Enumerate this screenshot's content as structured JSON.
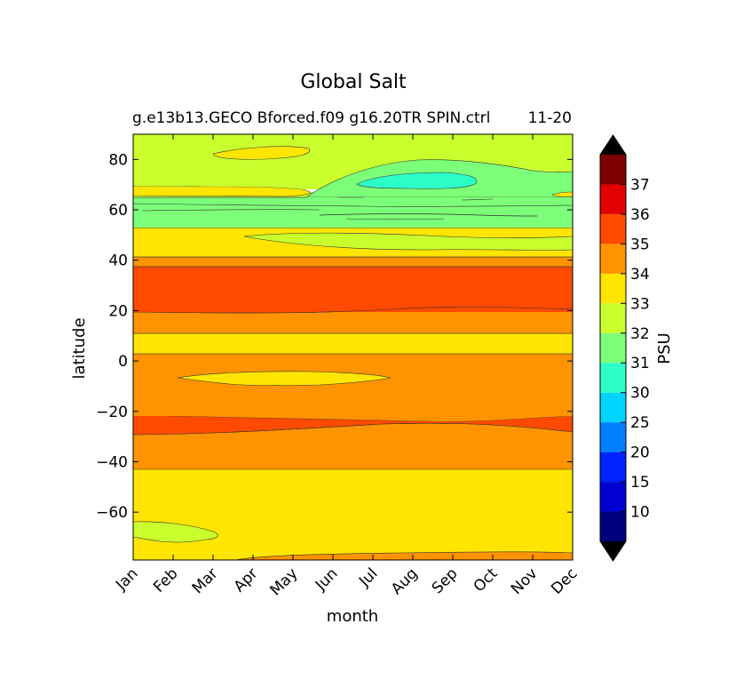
{
  "figure": {
    "title": "Global Salt",
    "subtitle": "g.e13b13.GECO Bforced.f09 g16.20TR SPIN.ctrl",
    "subtitle_extra": "11-20"
  },
  "chart_data": {
    "type": "heatmap",
    "title": "Global Salt",
    "subtitle": "g.e13b13.GECO Bforced.f09 g16.20TR SPIN.ctrl 11-20",
    "xlabel": "month",
    "ylabel": "latitude",
    "x_categories": [
      "Jan",
      "Feb",
      "Mar",
      "Apr",
      "May",
      "Jun",
      "Jul",
      "Aug",
      "Sep",
      "Oct",
      "Nov",
      "Dec"
    ],
    "ylim": [
      -79,
      90
    ],
    "y_ticks": [
      -60,
      -40,
      -20,
      0,
      20,
      40,
      60,
      80
    ],
    "y_tick_labels": [
      "−60",
      "−40",
      "−20",
      "0",
      "20",
      "40",
      "60",
      "80"
    ],
    "colorbar": {
      "label": "PSU",
      "extend": "both",
      "levels": [
        5,
        10,
        15,
        20,
        25,
        30,
        31,
        32,
        33,
        34,
        35,
        36,
        37,
        38
      ],
      "tick_labels": [
        "10",
        "15",
        "20",
        "25",
        "30",
        "31",
        "32",
        "33",
        "34",
        "35",
        "36",
        "37"
      ],
      "colors": [
        "#00007f",
        "#0000d0",
        "#0022ff",
        "#0080ff",
        "#00d4ff",
        "#2dffc9",
        "#7cff79",
        "#c9ff2d",
        "#ffe500",
        "#ff9400",
        "#ff4a00",
        "#e30000",
        "#7f0000"
      ],
      "under_color": "#000000",
      "over_color": "#000000"
    },
    "field_bands": [
      {
        "lat_from": -79,
        "lat_to": -43,
        "range": "33-34"
      },
      {
        "lat_from": -43,
        "lat_to": -28,
        "range": "34-35"
      },
      {
        "lat_from": -28,
        "lat_to": -21,
        "range": "35-36"
      },
      {
        "lat_from": -21,
        "lat_to": 3,
        "range": "34-35"
      },
      {
        "lat_from": 3,
        "lat_to": 11,
        "range": "33-34"
      },
      {
        "lat_from": 11,
        "lat_to": 20,
        "range": "34-35"
      },
      {
        "lat_from": 20,
        "lat_to": 37,
        "range": "35-36"
      },
      {
        "lat_from": 37,
        "lat_to": 41,
        "range": "34-35"
      },
      {
        "lat_from": 41,
        "lat_to": 52,
        "range": "33-34"
      },
      {
        "lat_from": 52,
        "lat_to": 64,
        "range": "31-32"
      },
      {
        "lat_from": 64,
        "lat_to": 66,
        "range": "32-33"
      },
      {
        "lat_from": 66,
        "lat_to": 69,
        "range": "33-34"
      },
      {
        "lat_from": 69,
        "lat_to": 90,
        "range": "32-33"
      }
    ]
  }
}
